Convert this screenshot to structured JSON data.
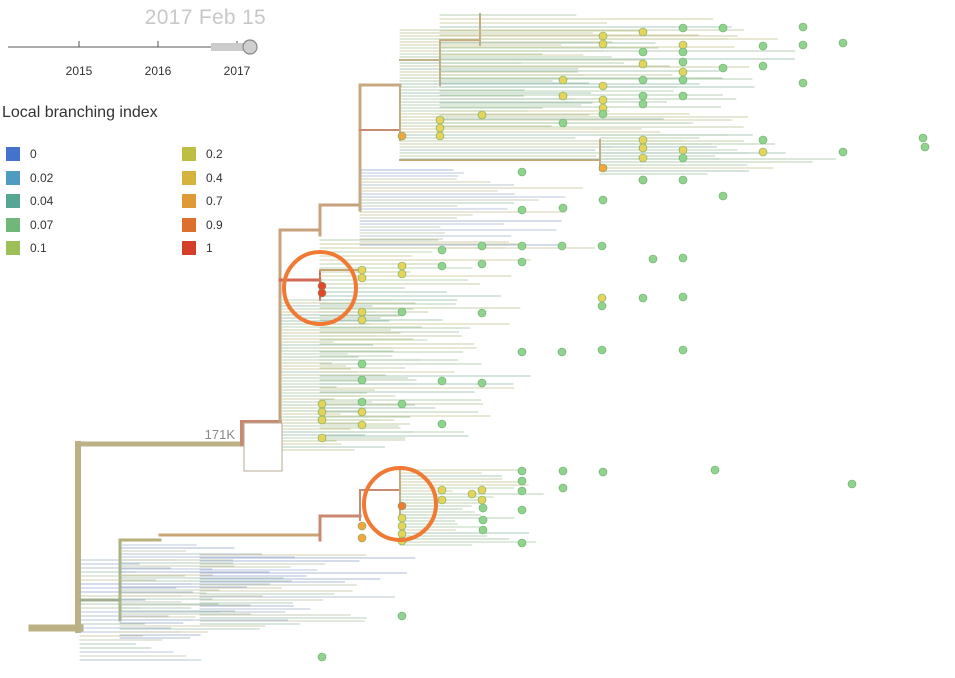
{
  "time_slider": {
    "current_date": "2017 Feb 15",
    "tick_labels": [
      "2015",
      "2016",
      "2017"
    ]
  },
  "legend": {
    "title": "Local branching index",
    "items": [
      {
        "label": "0",
        "color": "#4a7de0"
      },
      {
        "label": "0.02",
        "color": "#56a8d3"
      },
      {
        "label": "0.04",
        "color": "#5fb3a0"
      },
      {
        "label": "0.07",
        "color": "#7cc785"
      },
      {
        "label": "0.1",
        "color": "#a8d161"
      },
      {
        "label": "0.2",
        "color": "#cfcf4a"
      },
      {
        "label": "0.4",
        "color": "#e8c443"
      },
      {
        "label": "0.7",
        "color": "#f3a63c"
      },
      {
        "label": "0.9",
        "color": "#f07a33"
      },
      {
        "label": "1",
        "color": "#e8442c"
      }
    ]
  },
  "tree": {
    "node_label": "171K",
    "highlight_color": "#f07a33",
    "stem_color": "#bcb184"
  }
}
